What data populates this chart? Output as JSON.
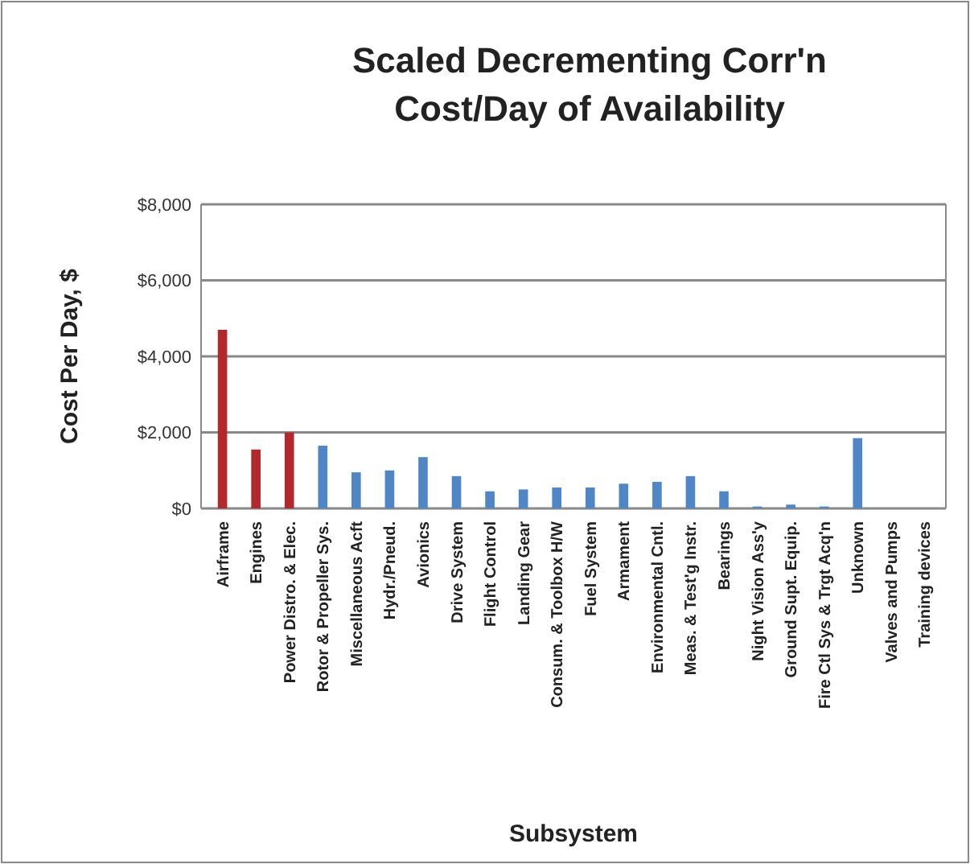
{
  "chart_data": {
    "type": "bar",
    "title": "Scaled Decrementing Corr'n\nCost/Day of Availability",
    "xlabel": "Subsystem",
    "ylabel": "Cost Per Day, $",
    "categories": [
      "Airframe",
      "Engines",
      "Power Distro. & Elec.",
      "Rotor & Propeller Sys.",
      "Miscellaneous Acft",
      "Hydr./Pneud.",
      "Avionics",
      "Drive System",
      "Flight Control",
      "Landing Gear",
      "Consum. & Toolbox H/W",
      "Fuel System",
      "Armament",
      "Environmental Cntl.",
      "Meas. & Test'g Instr.",
      "Bearings",
      "Night Vision Ass'y",
      "Ground Supt. Equip.",
      "Fire Ctl Sys & Trgt Acq'n",
      "Unknown",
      "Valves and Pumps",
      "Training devices"
    ],
    "values": [
      4700,
      1550,
      2000,
      1650,
      950,
      1000,
      1350,
      850,
      450,
      500,
      550,
      550,
      650,
      700,
      850,
      450,
      50,
      100,
      50,
      1850,
      0,
      0
    ],
    "colors": [
      "#b3282d",
      "#b3282d",
      "#b3282d",
      "#4f86c6",
      "#4f86c6",
      "#4f86c6",
      "#4f86c6",
      "#4f86c6",
      "#4f86c6",
      "#4f86c6",
      "#4f86c6",
      "#4f86c6",
      "#4f86c6",
      "#4f86c6",
      "#4f86c6",
      "#4f86c6",
      "#4f86c6",
      "#4f86c6",
      "#4f86c6",
      "#4f86c6",
      "#4f86c6",
      "#4f86c6"
    ],
    "ylim": [
      0,
      8000
    ],
    "yticks": [
      {
        "value": 0,
        "label": "$0"
      },
      {
        "value": 2000,
        "label": "$2,000"
      },
      {
        "value": 4000,
        "label": "$4,000"
      },
      {
        "value": 6000,
        "label": "$6,000"
      },
      {
        "value": 8000,
        "label": "$8,000"
      }
    ],
    "grid": "y"
  }
}
